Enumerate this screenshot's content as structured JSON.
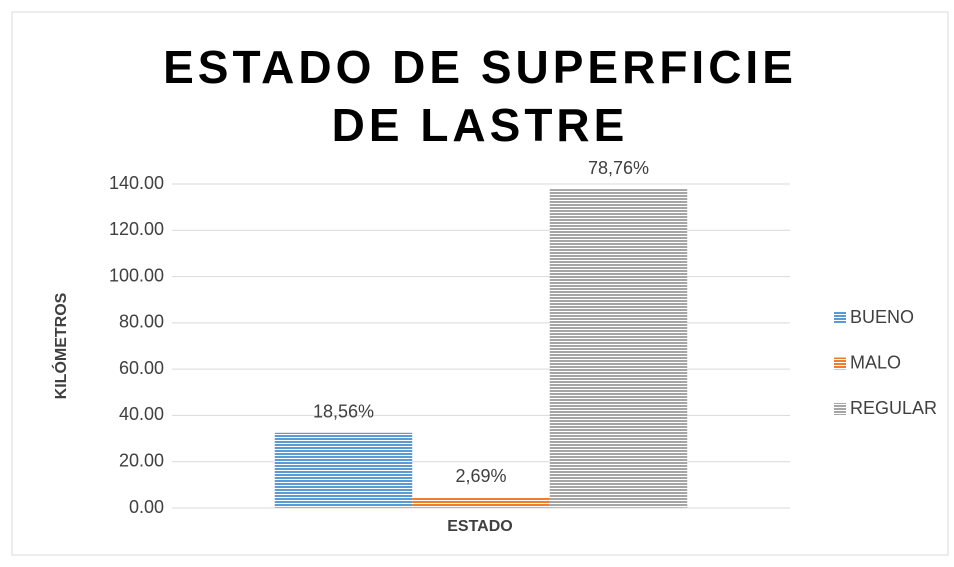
{
  "chart_data": {
    "type": "bar",
    "title": "ESTADO DE SUPERFICIE DE LASTRE",
    "x_label": "ESTADO",
    "y_label": "KILÓMETROS",
    "categories": [
      "ESTADO"
    ],
    "series": [
      {
        "name": "BUENO",
        "color": "#5b9bd5",
        "values": [
          32.5
        ],
        "labels": [
          "18,56%"
        ]
      },
      {
        "name": "MALO",
        "color": "#ed7d31",
        "values": [
          4.7
        ],
        "labels": [
          "2,69%"
        ]
      },
      {
        "name": "REGULAR",
        "color": "#a5a5a5",
        "values": [
          137.8
        ],
        "labels": [
          "78,76%"
        ]
      }
    ],
    "ylim": [
      0,
      140
    ],
    "yticks": [
      {
        "value": 0,
        "label": "0.00"
      },
      {
        "value": 20,
        "label": "20.00"
      },
      {
        "value": 40,
        "label": "40.00"
      },
      {
        "value": 60,
        "label": "60.00"
      },
      {
        "value": 80,
        "label": "80.00"
      },
      {
        "value": 100,
        "label": "100.00"
      },
      {
        "value": 120,
        "label": "120.00"
      },
      {
        "value": 140,
        "label": "140.00"
      }
    ],
    "grid": true,
    "legend": "right"
  }
}
